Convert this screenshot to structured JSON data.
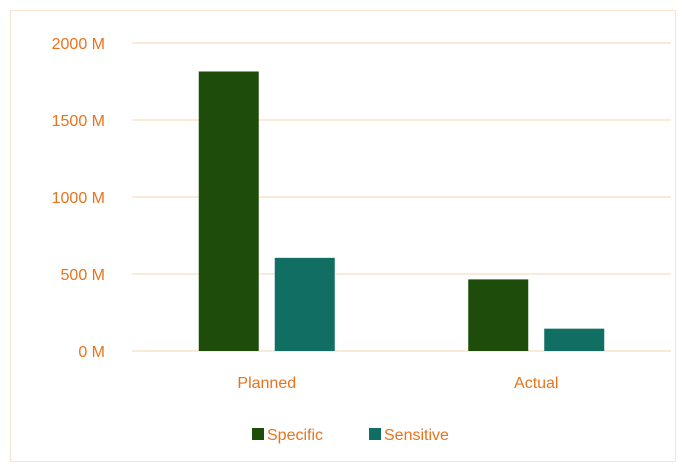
{
  "chart_data": {
    "type": "bar",
    "categories": [
      "Planned",
      "Actual"
    ],
    "series": [
      {
        "name": "Specific",
        "values": [
          1815,
          465
        ],
        "color": "#1e4d0b"
      },
      {
        "name": "Sensitive",
        "values": [
          605,
          145
        ],
        "color": "#116e62"
      }
    ],
    "ylim": [
      0,
      2000
    ],
    "yticks": [
      0,
      500,
      1000,
      1500,
      2000
    ],
    "ytick_labels": [
      "0 M",
      "500 M",
      "1000 M",
      "1500 M",
      "2000 M"
    ],
    "grid": true,
    "legend": "bottom",
    "colors": {
      "text": "#e8731c",
      "grid": "#f6d4b5",
      "border": "#fbe3cf"
    }
  }
}
